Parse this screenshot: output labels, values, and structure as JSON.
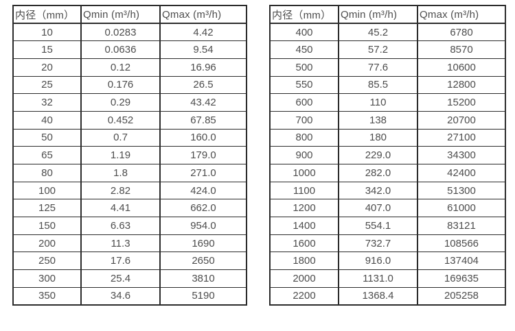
{
  "colors": {
    "background": "#ffffff",
    "text": "#4d4d4d",
    "border": "#2b2b2b"
  },
  "table_left": {
    "name": "flow-rates-small-diameters",
    "headers": [
      "内径（mm）",
      "Qmin (m³/h)",
      "Qmax (m³/h)"
    ],
    "rows": [
      [
        "10",
        "0.0283",
        "4.42"
      ],
      [
        "15",
        "0.0636",
        "9.54"
      ],
      [
        "20",
        "0.12",
        "16.96"
      ],
      [
        "25",
        "0.176",
        "26.5"
      ],
      [
        "32",
        "0.29",
        "43.42"
      ],
      [
        "40",
        "0.452",
        "67.85"
      ],
      [
        "50",
        "0.7",
        "160.0"
      ],
      [
        "65",
        "1.19",
        "179.0"
      ],
      [
        "80",
        "1.8",
        "271.0"
      ],
      [
        "100",
        "2.82",
        "424.0"
      ],
      [
        "125",
        "4.41",
        "662.0"
      ],
      [
        "150",
        "6.63",
        "954.0"
      ],
      [
        "200",
        "11.3",
        "1690"
      ],
      [
        "250",
        "17.6",
        "2650"
      ],
      [
        "300",
        "25.4",
        "3810"
      ],
      [
        "350",
        "34.6",
        "5190"
      ]
    ]
  },
  "table_right": {
    "name": "flow-rates-large-diameters",
    "headers": [
      "内径（mm）",
      "Qmin (m³/h)",
      "Qmax (m³/h)"
    ],
    "rows": [
      [
        "400",
        "45.2",
        "6780"
      ],
      [
        "450",
        "57.2",
        "8570"
      ],
      [
        "500",
        "77.6",
        "10600"
      ],
      [
        "550",
        "85.5",
        "12800"
      ],
      [
        "600",
        "110",
        "15200"
      ],
      [
        "700",
        "138",
        "20700"
      ],
      [
        "800",
        "180",
        "27100"
      ],
      [
        "900",
        "229.0",
        "34300"
      ],
      [
        "1000",
        "282.0",
        "42400"
      ],
      [
        "1100",
        "342.0",
        "51300"
      ],
      [
        "1200",
        "407.0",
        "61000"
      ],
      [
        "1400",
        "554.1",
        "83121"
      ],
      [
        "1600",
        "732.7",
        "108566"
      ],
      [
        "1800",
        "916.0",
        "137404"
      ],
      [
        "2000",
        "1131.0",
        "169635"
      ],
      [
        "2200",
        "1368.4",
        "205258"
      ]
    ]
  }
}
